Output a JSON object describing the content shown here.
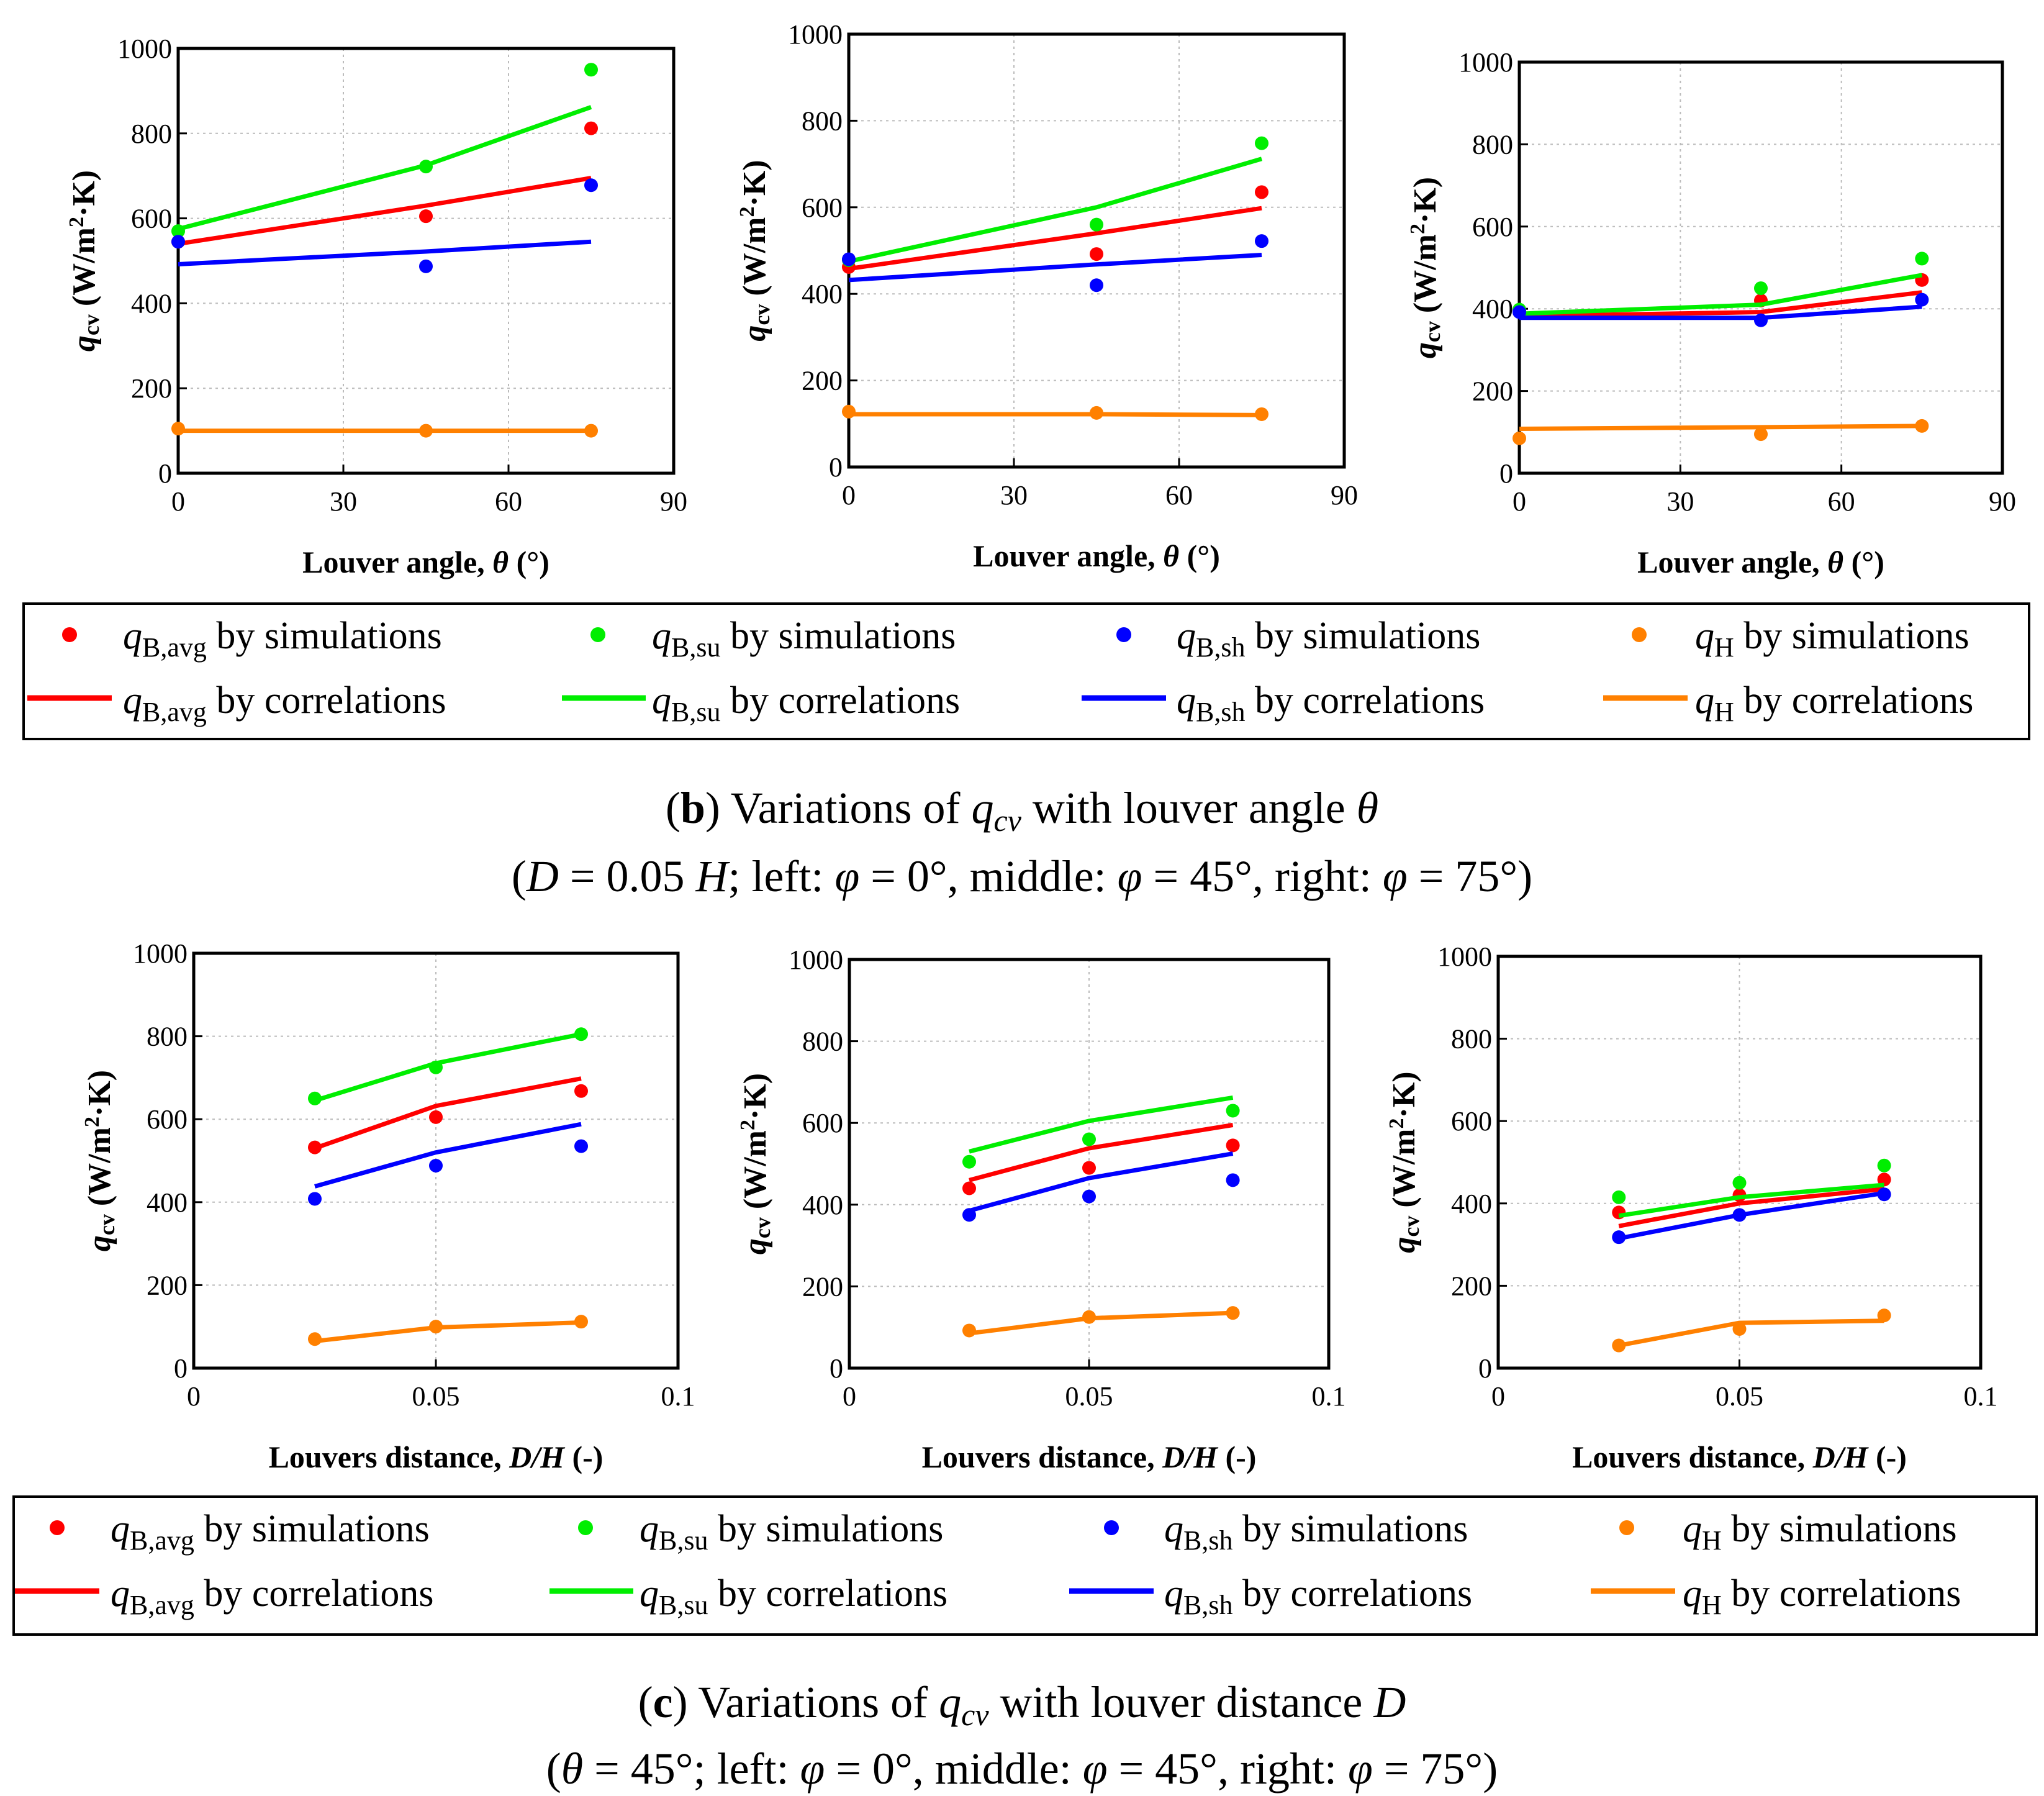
{
  "colors": {
    "avg": "#ff0000",
    "su": "#00ee00",
    "sh": "#0000ff",
    "H": "#ff8000"
  },
  "y_label": {
    "q": "q",
    "sub": "cv",
    "unit_open": " (W/m",
    "sup": "2",
    "unit_close": "·K)"
  },
  "rows": [
    {
      "xlabel": {
        "text": "Louver angle, ",
        "sym": "θ",
        "unit": " (°)"
      },
      "legend": {
        "sim": [
          {
            "q": "q",
            "sub": "B,avg",
            "text": " by simulations",
            "series": "avg"
          },
          {
            "q": "q",
            "sub": "B,su",
            "text": " by simulations",
            "series": "su"
          },
          {
            "q": "q",
            "sub": "B,sh",
            "text": " by simulations",
            "series": "sh"
          },
          {
            "q": "q",
            "sub": "H",
            "text": " by simulations",
            "series": "H"
          }
        ],
        "cor": [
          {
            "q": "q",
            "sub": "B,avg",
            "text": " by correlations",
            "series": "avg"
          },
          {
            "q": "q",
            "sub": "B,su",
            "text": " by correlations",
            "series": "su"
          },
          {
            "q": "q",
            "sub": "B,sh",
            "text": " by correlations",
            "series": "sh"
          },
          {
            "q": "q",
            "sub": "H",
            "text": " by correlations",
            "series": "H"
          }
        ]
      },
      "caption": {
        "line1": {
          "open": "(",
          "letter": "b",
          "close": ") Variations of ",
          "q": "q",
          "sub": "cv",
          "mid": " with louver angle ",
          "sym": "θ"
        },
        "line2": {
          "p1": "(",
          "D": "D",
          "p2": " = 0.05 ",
          "H": "H",
          "p3": "; left: ",
          "phi1": "φ",
          "p4": " = 0°, middle: ",
          "phi2": "φ",
          "p5": " = 45°, right: ",
          "phi3": "φ",
          "p6": " = 75°)"
        }
      }
    },
    {
      "xlabel": {
        "text": "Louvers distance, ",
        "sym": "D/H",
        "unit": " (-)"
      },
      "legend": {
        "sim": [
          {
            "q": "q",
            "sub": "B,avg",
            "text": " by simulations",
            "series": "avg"
          },
          {
            "q": "q",
            "sub": "B,su",
            "text": " by simulations",
            "series": "su"
          },
          {
            "q": "q",
            "sub": "B,sh",
            "text": " by simulations",
            "series": "sh"
          },
          {
            "q": "q",
            "sub": "H",
            "text": " by simulations",
            "series": "H"
          }
        ],
        "cor": [
          {
            "q": "q",
            "sub": "B,avg",
            "text": " by correlations",
            "series": "avg"
          },
          {
            "q": "q",
            "sub": "B,su",
            "text": " by correlations",
            "series": "su"
          },
          {
            "q": "q",
            "sub": "B,sh",
            "text": " by correlations",
            "series": "sh"
          },
          {
            "q": "q",
            "sub": "H",
            "text": " by correlations",
            "series": "H"
          }
        ]
      },
      "caption": {
        "line1": {
          "open": "(",
          "letter": "c",
          "close": ") Variations of ",
          "q": "q",
          "sub": "cv",
          "mid": " with louver distance ",
          "sym": "D"
        },
        "line2": {
          "p1": "(",
          "D": "θ",
          "p2": " = 45°",
          "H": "",
          "p3": "; left: ",
          "phi1": "φ",
          "p4": " = 0°, middle: ",
          "phi2": "φ",
          "p5": " = 45°, right: ",
          "phi3": "φ",
          "p6": " = 75°)"
        }
      }
    }
  ],
  "chart_data": [
    {
      "id": "b-left",
      "type": "scatter",
      "title": "",
      "xlabel": "Louver angle, θ (°)",
      "ylabel": "qcv (W/m2·K)",
      "xlim": [
        0,
        90
      ],
      "ylim": [
        0,
        1000
      ],
      "xticks": [
        "0",
        "30",
        "60",
        "90"
      ],
      "yticks": [
        "0",
        "200",
        "400",
        "600",
        "800",
        "1000"
      ],
      "x": [
        0,
        45,
        75
      ],
      "series": [
        {
          "key": "avg",
          "name": "qB,avg",
          "sim": [
            545,
            605,
            812
          ],
          "cor": [
            540,
            630,
            695
          ]
        },
        {
          "key": "su",
          "name": "qB,su",
          "sim": [
            570,
            722,
            950
          ],
          "cor": [
            575,
            725,
            862
          ]
        },
        {
          "key": "sh",
          "name": "qB,sh",
          "sim": [
            545,
            487,
            678
          ],
          "cor": [
            492,
            522,
            545
          ]
        },
        {
          "key": "H",
          "name": "qH",
          "sim": [
            105,
            100,
            100
          ],
          "cor": [
            100,
            100,
            100
          ]
        }
      ]
    },
    {
      "id": "b-middle",
      "type": "scatter",
      "title": "",
      "xlabel": "Louver angle, θ (°)",
      "ylabel": "qcv (W/m2·K)",
      "xlim": [
        0,
        90
      ],
      "ylim": [
        0,
        1000
      ],
      "xticks": [
        "0",
        "30",
        "60",
        "90"
      ],
      "yticks": [
        "0",
        "200",
        "400",
        "600",
        "800",
        "1000"
      ],
      "x": [
        0,
        45,
        75
      ],
      "series": [
        {
          "key": "avg",
          "name": "qB,avg",
          "sim": [
            462,
            492,
            635
          ],
          "cor": [
            458,
            540,
            598
          ]
        },
        {
          "key": "su",
          "name": "qB,su",
          "sim": [
            478,
            560,
            748
          ],
          "cor": [
            475,
            600,
            712
          ]
        },
        {
          "key": "sh",
          "name": "qB,sh",
          "sim": [
            480,
            420,
            522
          ],
          "cor": [
            432,
            468,
            490
          ]
        },
        {
          "key": "H",
          "name": "qH",
          "sim": [
            128,
            125,
            122
          ],
          "cor": [
            122,
            122,
            120
          ]
        }
      ]
    },
    {
      "id": "b-right",
      "type": "scatter",
      "title": "",
      "xlabel": "Louver angle, θ (°)",
      "ylabel": "qcv (W/m2·K)",
      "xlim": [
        0,
        90
      ],
      "ylim": [
        0,
        1000
      ],
      "xticks": [
        "0",
        "30",
        "60",
        "90"
      ],
      "yticks": [
        "0",
        "200",
        "400",
        "600",
        "800",
        "1000"
      ],
      "x": [
        0,
        45,
        75
      ],
      "series": [
        {
          "key": "avg",
          "name": "qB,avg",
          "sim": [
            395,
            420,
            470
          ],
          "cor": [
            382,
            392,
            440
          ]
        },
        {
          "key": "su",
          "name": "qB,su",
          "sim": [
            398,
            450,
            522
          ],
          "cor": [
            388,
            410,
            482
          ]
        },
        {
          "key": "sh",
          "name": "qB,sh",
          "sim": [
            392,
            372,
            422
          ],
          "cor": [
            378,
            378,
            405
          ]
        },
        {
          "key": "H",
          "name": "qH",
          "sim": [
            85,
            95,
            115
          ],
          "cor": [
            108,
            112,
            115
          ]
        }
      ]
    },
    {
      "id": "c-left",
      "type": "scatter",
      "title": "",
      "xlabel": "Louvers distance, D/H (-)",
      "ylabel": "qcv (W/m2·K)",
      "xlim": [
        0,
        0.1
      ],
      "ylim": [
        0,
        1000
      ],
      "xticks": [
        "0",
        "0.05",
        "0.1"
      ],
      "yticks": [
        "0",
        "200",
        "400",
        "600",
        "800",
        "1000"
      ],
      "x": [
        0.025,
        0.05,
        0.08
      ],
      "series": [
        {
          "key": "avg",
          "name": "qB,avg",
          "sim": [
            532,
            605,
            668
          ],
          "cor": [
            530,
            632,
            698
          ]
        },
        {
          "key": "su",
          "name": "qB,su",
          "sim": [
            650,
            725,
            805
          ],
          "cor": [
            645,
            735,
            805
          ]
        },
        {
          "key": "sh",
          "name": "qB,sh",
          "sim": [
            408,
            488,
            535
          ],
          "cor": [
            438,
            520,
            588
          ]
        },
        {
          "key": "H",
          "name": "qH",
          "sim": [
            70,
            100,
            112
          ],
          "cor": [
            65,
            98,
            110
          ]
        }
      ]
    },
    {
      "id": "c-middle",
      "type": "scatter",
      "title": "",
      "xlabel": "Louvers distance, D/H (-)",
      "ylabel": "qcv (W/m2·K)",
      "xlim": [
        0,
        0.1
      ],
      "ylim": [
        0,
        1000
      ],
      "xticks": [
        "0",
        "0.05",
        "0.1"
      ],
      "yticks": [
        "0",
        "200",
        "400",
        "600",
        "800",
        "1000"
      ],
      "x": [
        0.025,
        0.05,
        0.08
      ],
      "series": [
        {
          "key": "avg",
          "name": "qB,avg",
          "sim": [
            440,
            490,
            545
          ],
          "cor": [
            460,
            538,
            595
          ]
        },
        {
          "key": "su",
          "name": "qB,su",
          "sim": [
            505,
            560,
            630
          ],
          "cor": [
            530,
            605,
            662
          ]
        },
        {
          "key": "sh",
          "name": "qB,sh",
          "sim": [
            375,
            420,
            460
          ],
          "cor": [
            385,
            465,
            525
          ]
        },
        {
          "key": "H",
          "name": "qH",
          "sim": [
            92,
            125,
            135
          ],
          "cor": [
            85,
            122,
            135
          ]
        }
      ]
    },
    {
      "id": "c-right",
      "type": "scatter",
      "title": "",
      "xlabel": "Louvers distance, D/H (-)",
      "ylabel": "qcv (W/m2·K)",
      "xlim": [
        0,
        0.1
      ],
      "ylim": [
        0,
        1000
      ],
      "xticks": [
        "0",
        "0.05",
        "0.1"
      ],
      "yticks": [
        "0",
        "200",
        "400",
        "600",
        "800",
        "1000"
      ],
      "x": [
        0.025,
        0.05,
        0.08
      ],
      "series": [
        {
          "key": "avg",
          "name": "qB,avg",
          "sim": [
            378,
            420,
            458
          ],
          "cor": [
            345,
            400,
            435
          ]
        },
        {
          "key": "su",
          "name": "qB,su",
          "sim": [
            415,
            450,
            492
          ],
          "cor": [
            370,
            415,
            445
          ]
        },
        {
          "key": "sh",
          "name": "qB,sh",
          "sim": [
            318,
            372,
            422
          ],
          "cor": [
            315,
            372,
            425
          ]
        },
        {
          "key": "H",
          "name": "qH",
          "sim": [
            55,
            95,
            128
          ],
          "cor": [
            55,
            110,
            115
          ]
        }
      ]
    }
  ]
}
